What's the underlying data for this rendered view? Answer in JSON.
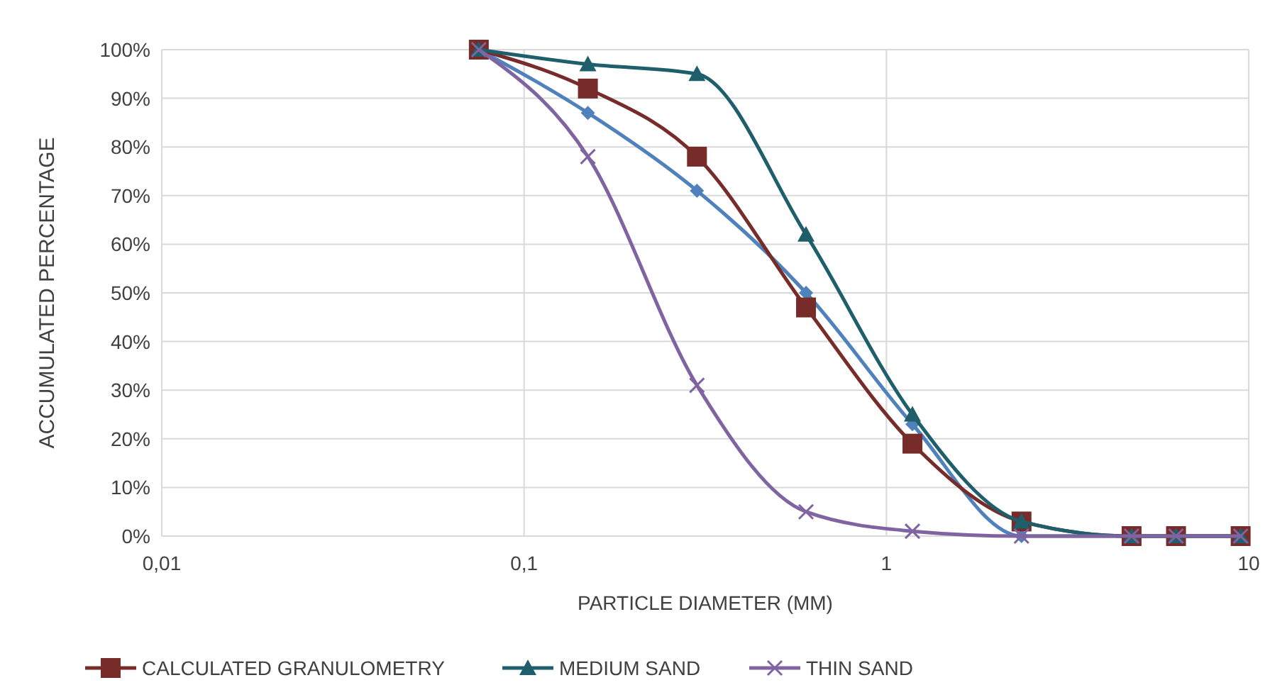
{
  "chart_data": {
    "type": "line",
    "xlabel": "PARTICLE DIAMETER (MM)",
    "ylabel": "ACCUMULATED PERCENTAGE",
    "log": "x",
    "grid": true,
    "legend": "bottom",
    "xlim": [
      0.01,
      10
    ],
    "xticks": [
      {
        "value": 0.01,
        "label": "0,01"
      },
      {
        "value": 0.1,
        "label": "0,1"
      },
      1,
      10
    ],
    "ylim": [
      0,
      100
    ],
    "yticks": [
      {
        "value": 0,
        "label": "0%"
      },
      {
        "value": 10,
        "label": "10%"
      },
      {
        "value": 20,
        "label": "20%"
      },
      {
        "value": 30,
        "label": "30%"
      },
      {
        "value": 40,
        "label": "40%"
      },
      {
        "value": 50,
        "label": "50%"
      },
      {
        "value": 60,
        "label": "60%"
      },
      {
        "value": 70,
        "label": "70%"
      },
      {
        "value": 80,
        "label": "80%"
      },
      {
        "value": 90,
        "label": "90%"
      },
      {
        "value": 100,
        "label": "100%"
      }
    ],
    "x": [
      0.075,
      0.15,
      0.3,
      0.6,
      1.18,
      2.36,
      4.75,
      6.3,
      9.5
    ],
    "series": [
      {
        "color": "#4f81bd",
        "marker": "diamond",
        "values": [
          100,
          87,
          71,
          50,
          23,
          0,
          0,
          0,
          0
        ]
      },
      {
        "name": "CALCULATED GRANULOMETRY",
        "color": "#772c2a",
        "marker": "square",
        "values": [
          100,
          92,
          78,
          47,
          19,
          3,
          0,
          0,
          0
        ]
      },
      {
        "name": "MEDIUM SAND",
        "color": "#1f5f6b",
        "marker": "triangle",
        "values": [
          100,
          97,
          95,
          62,
          25,
          3,
          0,
          0,
          0
        ]
      },
      {
        "name": "THIN SAND",
        "color": "#8064a2",
        "marker": "cross",
        "values": [
          100,
          78,
          31,
          5,
          1,
          0,
          0,
          0,
          0
        ]
      }
    ]
  }
}
